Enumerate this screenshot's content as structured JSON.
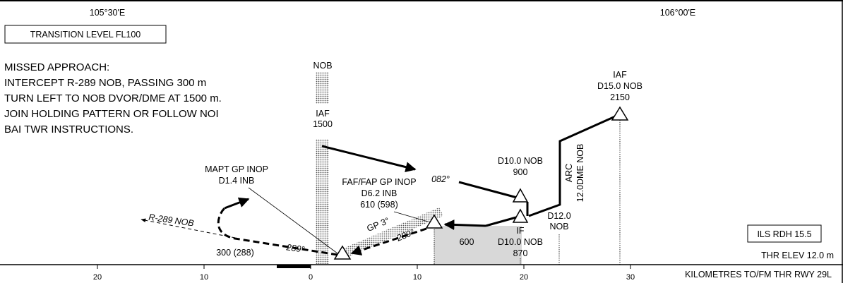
{
  "header": {
    "lon_left": "105°30'E",
    "lon_right": "106°00'E"
  },
  "transition_level": "TRANSITION LEVEL FL100",
  "missed_approach": {
    "lines": [
      "MISSED APPROACH:",
      "INTERCEPT R-289 NOB, PASSING 300 m",
      "TURN LEFT TO NOB DVOR/DME AT 1500 m.",
      "JOIN HOLDING PATTERN OR FOLLOW NOI",
      "BAI TWR INSTRUCTIONS."
    ]
  },
  "fixes": {
    "nob": "NOB",
    "iaf_1500": {
      "name": "IAF",
      "alt": "1500"
    },
    "iaf_d15": {
      "name": "IAF",
      "dist": "D15.0 NOB",
      "alt": "2150"
    },
    "d10": {
      "dist": "D10.0 NOB",
      "alt": "900"
    },
    "if": {
      "name": "IF",
      "dist": "D10.0 NOB",
      "alt": "870"
    },
    "d12": {
      "dist": "D12.0",
      "ref": "NOB"
    },
    "arc": {
      "line1": "ARC",
      "line2": "12.0DME NOB"
    },
    "faf": {
      "line1": "FAF/FAP GP INOP",
      "line2": "D6.2 INB",
      "line3": "610 (598)"
    },
    "mapt": {
      "line1": "MAPT GP INOP",
      "line2": "D1.4 INB"
    },
    "ma_alt": "300 (288)"
  },
  "tracks": {
    "inbound_082": "082°",
    "final_289": "289°",
    "ma_289": "289°",
    "gp": "GP 3°",
    "radial": "R-289 NOB",
    "msa_box": "600"
  },
  "info": {
    "ils_rdh": "ILS RDH  15.5",
    "thr_elev": "THR ELEV 12.0 m"
  },
  "axis": {
    "ticks": [
      "20",
      "10",
      "0",
      "10",
      "20",
      "30"
    ],
    "label": "KILOMETRES TO/FM THR RWY 29L"
  }
}
